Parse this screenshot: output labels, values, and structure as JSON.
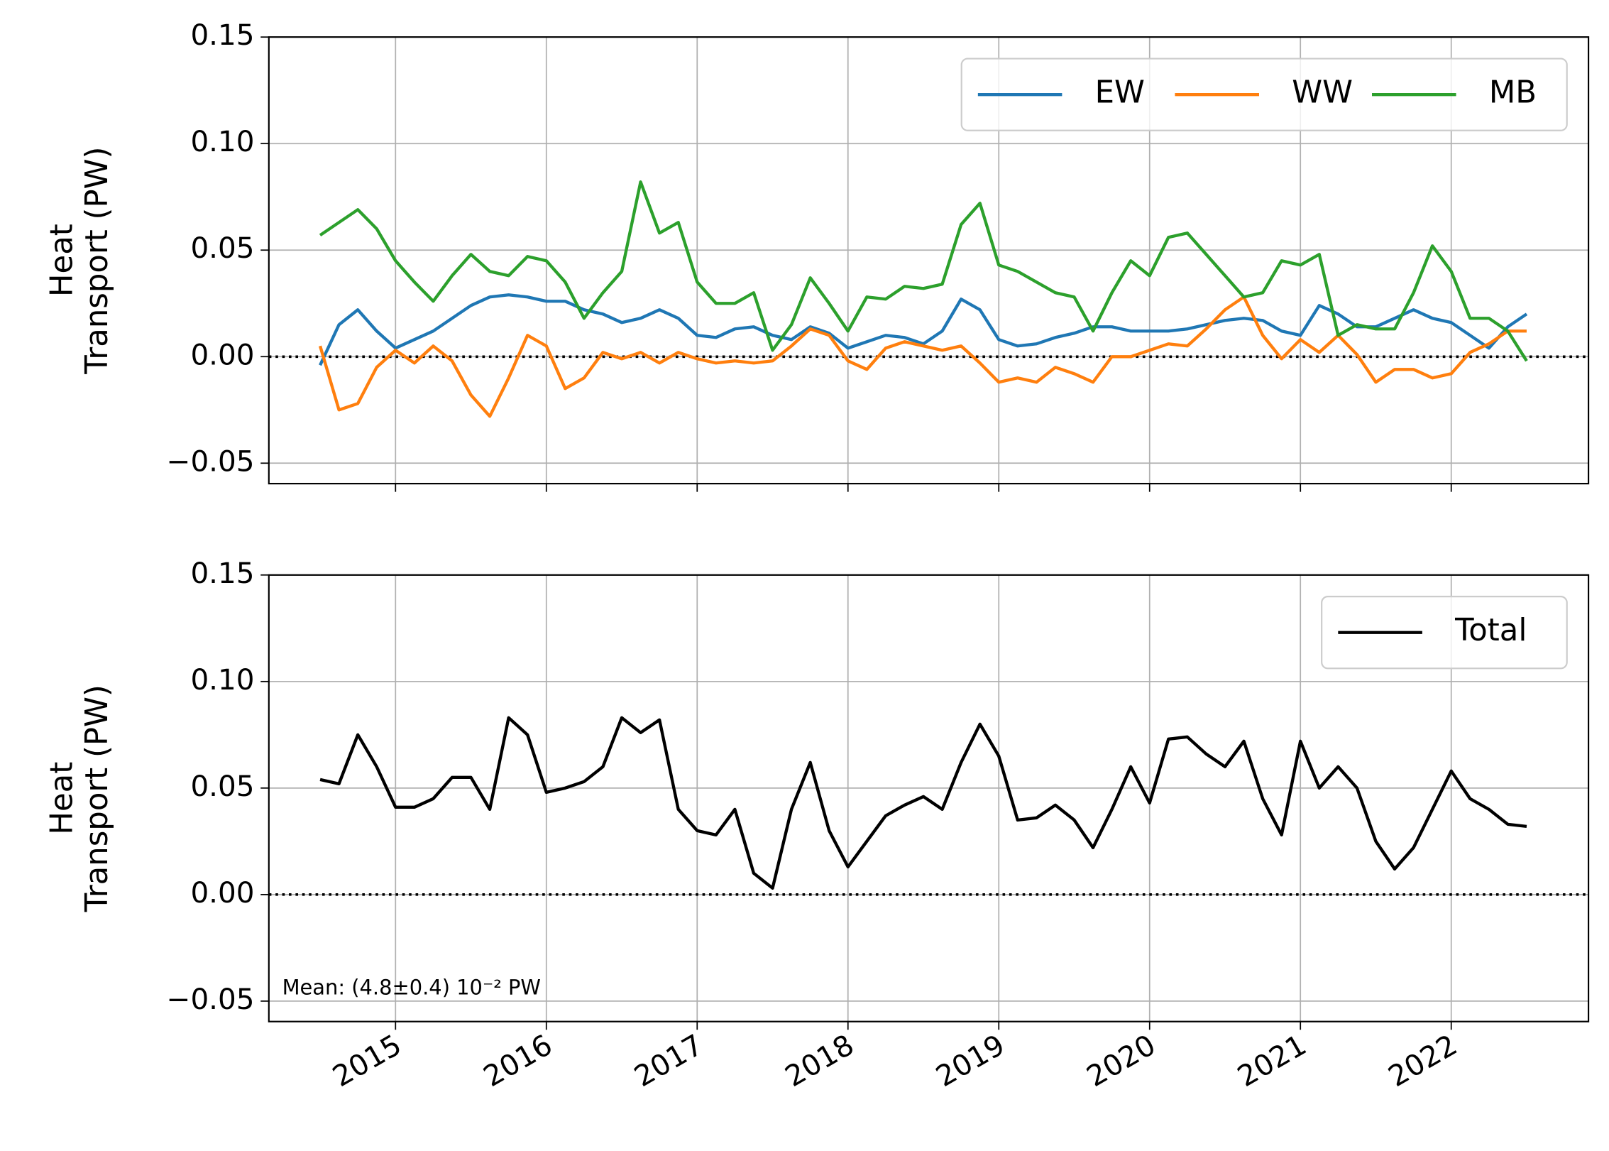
{
  "chart_data": [
    {
      "type": "line",
      "ylabel": "Heat\nTransport (PW)",
      "x": [
        2014.5,
        2014.625,
        2014.75,
        2014.875,
        2015,
        2015.125,
        2015.25,
        2015.375,
        2015.5,
        2015.625,
        2015.75,
        2015.875,
        2016,
        2016.125,
        2016.25,
        2016.375,
        2016.5,
        2016.625,
        2016.75,
        2016.875,
        2017,
        2017.125,
        2017.25,
        2017.375,
        2017.5,
        2017.625,
        2017.75,
        2017.875,
        2018,
        2018.125,
        2018.25,
        2018.375,
        2018.5,
        2018.625,
        2018.75,
        2018.875,
        2019,
        2019.125,
        2019.25,
        2019.375,
        2019.5,
        2019.625,
        2019.75,
        2019.875,
        2020,
        2020.125,
        2020.25,
        2020.375,
        2020.5,
        2020.625,
        2020.75,
        2020.875,
        2021,
        2021.125,
        2021.25,
        2021.375,
        2021.5,
        2021.625,
        2021.75,
        2021.875,
        2022,
        2022.125,
        2022.25,
        2022.375,
        2022.5
      ],
      "series": [
        {
          "name": "EW",
          "color": "#1f77b4",
          "values": [
            -0.004,
            0.015,
            0.022,
            0.012,
            0.004,
            0.008,
            0.012,
            0.018,
            0.024,
            0.028,
            0.029,
            0.028,
            0.026,
            0.026,
            0.022,
            0.02,
            0.016,
            0.018,
            0.022,
            0.018,
            0.01,
            0.009,
            0.013,
            0.014,
            0.01,
            0.008,
            0.014,
            0.011,
            0.004,
            0.007,
            0.01,
            0.009,
            0.006,
            0.012,
            0.027,
            0.022,
            0.008,
            0.005,
            0.006,
            0.009,
            0.011,
            0.014,
            0.014,
            0.012,
            0.012,
            0.012,
            0.013,
            0.015,
            0.017,
            0.018,
            0.017,
            0.012,
            0.01,
            0.024,
            0.02,
            0.014,
            0.014,
            0.018,
            0.022,
            0.018,
            0.016,
            0.01,
            0.004,
            0.014,
            0.02
          ]
        },
        {
          "name": "WW",
          "color": "#ff7f0e",
          "values": [
            0.005,
            -0.025,
            -0.022,
            -0.005,
            0.003,
            -0.003,
            0.005,
            -0.002,
            -0.018,
            -0.028,
            -0.01,
            0.01,
            0.005,
            -0.015,
            -0.01,
            0.002,
            -0.001,
            0.002,
            -0.003,
            0.002,
            -0.001,
            -0.003,
            -0.002,
            -0.003,
            -0.002,
            0.005,
            0.013,
            0.01,
            -0.002,
            -0.006,
            0.004,
            0.007,
            0.005,
            0.003,
            0.005,
            -0.003,
            -0.012,
            -0.01,
            -0.012,
            -0.005,
            -0.008,
            -0.012,
            0.0,
            0.0,
            0.003,
            0.006,
            0.005,
            0.013,
            0.022,
            0.028,
            0.01,
            -0.001,
            0.008,
            0.002,
            0.01,
            0.001,
            -0.012,
            -0.006,
            -0.006,
            -0.01,
            -0.008,
            0.002,
            0.006,
            0.012,
            0.012
          ]
        },
        {
          "name": "MB",
          "color": "#2ca02c",
          "values": [
            0.057,
            0.063,
            0.069,
            0.06,
            0.045,
            0.035,
            0.026,
            0.038,
            0.048,
            0.04,
            0.038,
            0.047,
            0.045,
            0.035,
            0.018,
            0.03,
            0.04,
            0.082,
            0.058,
            0.063,
            0.035,
            0.025,
            0.025,
            0.03,
            0.003,
            0.015,
            0.037,
            0.025,
            0.012,
            0.028,
            0.027,
            0.033,
            0.032,
            0.034,
            0.062,
            0.072,
            0.043,
            0.04,
            0.035,
            0.03,
            0.028,
            0.012,
            0.03,
            0.045,
            0.038,
            0.056,
            0.058,
            0.048,
            0.038,
            0.028,
            0.03,
            0.045,
            0.043,
            0.048,
            0.01,
            0.015,
            0.013,
            0.013,
            0.03,
            0.052,
            0.04,
            0.018,
            0.018,
            0.012,
            -0.002
          ]
        }
      ],
      "xlim": [
        2014.16,
        2022.91
      ],
      "ylim": [
        -0.0596,
        0.15
      ],
      "yticks": [
        {
          "value": -0.05,
          "label": "−0.05"
        },
        {
          "value": 0,
          "label": "0.00"
        },
        {
          "value": 0.05,
          "label": "0.05"
        },
        {
          "value": 0.1,
          "label": "0.10"
        },
        {
          "value": 0.15,
          "label": "0.15"
        }
      ],
      "xticks": [
        2015,
        2016,
        2017,
        2018,
        2019,
        2020,
        2021,
        2022
      ],
      "show_xticklabels": false,
      "hline": 0,
      "grid": true,
      "legend": "upper right",
      "legend_columns": 3
    },
    {
      "type": "line",
      "ylabel": "Heat\nTransport (PW)",
      "annotation": "Mean: (4.8±0.4) 10⁻² PW",
      "x": [
        2014.5,
        2014.625,
        2014.75,
        2014.875,
        2015,
        2015.125,
        2015.25,
        2015.375,
        2015.5,
        2015.625,
        2015.75,
        2015.875,
        2016,
        2016.125,
        2016.25,
        2016.375,
        2016.5,
        2016.625,
        2016.75,
        2016.875,
        2017,
        2017.125,
        2017.25,
        2017.375,
        2017.5,
        2017.625,
        2017.75,
        2017.875,
        2018,
        2018.125,
        2018.25,
        2018.375,
        2018.5,
        2018.625,
        2018.75,
        2018.875,
        2019,
        2019.125,
        2019.25,
        2019.375,
        2019.5,
        2019.625,
        2019.75,
        2019.875,
        2020,
        2020.125,
        2020.25,
        2020.375,
        2020.5,
        2020.625,
        2020.75,
        2020.875,
        2021,
        2021.125,
        2021.25,
        2021.375,
        2021.5,
        2021.625,
        2021.75,
        2021.875,
        2022,
        2022.125,
        2022.25,
        2022.375,
        2022.5
      ],
      "series": [
        {
          "name": "Total",
          "color": "#000000",
          "values": [
            0.054,
            0.052,
            0.075,
            0.06,
            0.041,
            0.041,
            0.045,
            0.055,
            0.055,
            0.04,
            0.083,
            0.075,
            0.048,
            0.05,
            0.053,
            0.06,
            0.083,
            0.076,
            0.082,
            0.04,
            0.03,
            0.028,
            0.04,
            0.01,
            0.003,
            0.04,
            0.062,
            0.03,
            0.013,
            0.025,
            0.037,
            0.042,
            0.046,
            0.04,
            0.062,
            0.08,
            0.065,
            0.035,
            0.036,
            0.042,
            0.035,
            0.022,
            0.04,
            0.06,
            0.043,
            0.073,
            0.074,
            0.066,
            0.06,
            0.072,
            0.045,
            0.028,
            0.072,
            0.05,
            0.06,
            0.05,
            0.025,
            0.012,
            0.022,
            0.04,
            0.058,
            0.045,
            0.04,
            0.033,
            0.032
          ]
        }
      ],
      "xlim": [
        2014.16,
        2022.91
      ],
      "ylim": [
        -0.0596,
        0.15
      ],
      "yticks": [
        {
          "value": -0.05,
          "label": "−0.05"
        },
        {
          "value": 0,
          "label": "0.00"
        },
        {
          "value": 0.05,
          "label": "0.05"
        },
        {
          "value": 0.1,
          "label": "0.10"
        },
        {
          "value": 0.15,
          "label": "0.15"
        }
      ],
      "xticks": [
        2015,
        2016,
        2017,
        2018,
        2019,
        2020,
        2021,
        2022
      ],
      "show_xticklabels": true,
      "hline": 0,
      "grid": true,
      "legend": "upper right",
      "legend_columns": 1
    }
  ]
}
